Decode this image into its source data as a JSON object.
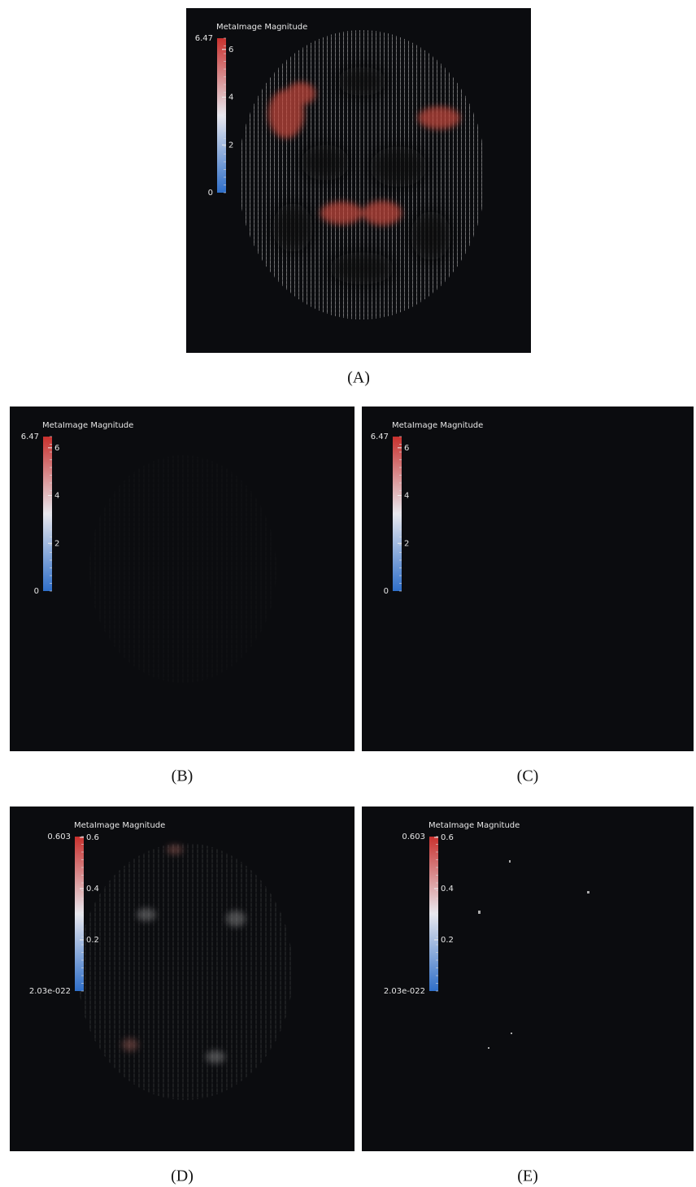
{
  "panels": [
    {
      "caption": "(A)",
      "colorbar": {
        "title": "MetaImage Magnitude",
        "max": "6.47",
        "min": "0",
        "ticks": [
          "6",
          "4",
          "2"
        ]
      }
    },
    {
      "caption": "(B)",
      "colorbar": {
        "title": "MetaImage Magnitude",
        "max": "6.47",
        "min": "0",
        "ticks": [
          "6",
          "4",
          "2"
        ]
      }
    },
    {
      "caption": "(C)",
      "colorbar": {
        "title": "MetaImage Magnitude",
        "max": "6.47",
        "min": "0",
        "ticks": [
          "6",
          "4",
          "2"
        ]
      }
    },
    {
      "caption": "(D)",
      "colorbar": {
        "title": "MetaImage Magnitude",
        "max": "0.603",
        "min": "2.03e-022",
        "ticks": [
          "0.6",
          "0.4",
          "0.2"
        ]
      }
    },
    {
      "caption": "(E)",
      "colorbar": {
        "title": "MetaImage Magnitude",
        "max": "0.603",
        "min": "2.03e-022",
        "ticks": [
          "0.6",
          "0.4",
          "0.2"
        ]
      }
    }
  ]
}
